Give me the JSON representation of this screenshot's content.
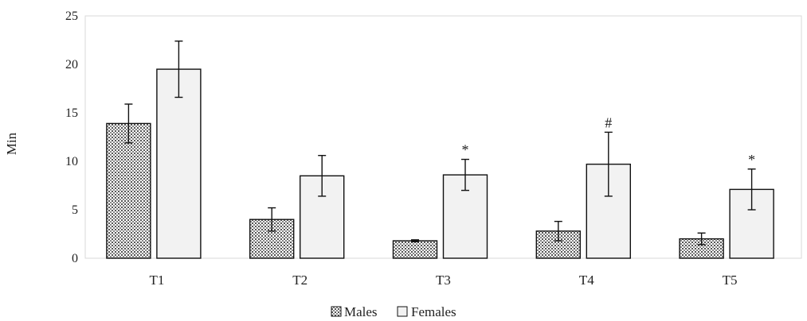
{
  "chart_data": {
    "type": "bar",
    "title": "",
    "xlabel": "",
    "ylabel": "Min",
    "ylim": [
      0,
      25
    ],
    "yticks": [
      "0",
      "5",
      "10",
      "15",
      "20",
      "25"
    ],
    "categories": [
      "T1",
      "T2",
      "T3",
      "T4",
      "T5"
    ],
    "series": [
      {
        "name": "Males",
        "values": [
          13.9,
          4.0,
          1.8,
          2.8,
          2.0
        ],
        "errors": [
          2.0,
          1.2,
          0.1,
          1.0,
          0.6
        ],
        "fill": "#bdbdbd"
      },
      {
        "name": "Females",
        "values": [
          19.5,
          8.5,
          8.6,
          9.7,
          7.1
        ],
        "errors": [
          2.9,
          2.1,
          1.6,
          3.3,
          2.1
        ],
        "fill": "#f2f2f2"
      }
    ],
    "annotations": [
      {
        "category": "T3",
        "series": "Females",
        "text": "*"
      },
      {
        "category": "T4",
        "series": "Females",
        "text": "#"
      },
      {
        "category": "T5",
        "series": "Females",
        "text": "*"
      }
    ],
    "legend": {
      "position": "bottom-center"
    },
    "grid": false
  }
}
